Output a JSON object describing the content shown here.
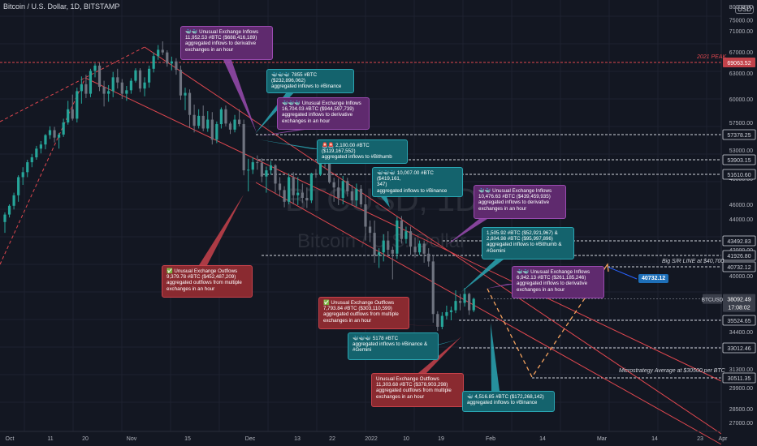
{
  "header": {
    "title": "Bitcoin / U.S. Dollar, 1D, BITSTAMP",
    "currency": "USD"
  },
  "watermark": {
    "ticker": "BTCUSD, 1D",
    "name": "Bitcoin / U.S. Dollar"
  },
  "colors": {
    "bg": "#131722",
    "up": "#26a69a",
    "down": "#6f7480",
    "channel": "#e0474f",
    "projection": "#f5a25d",
    "axisText": "#b2b5be"
  },
  "chart_data": {
    "type": "candlestick",
    "yaxis_ticks": [
      27000,
      28500,
      29900,
      31300,
      32600,
      34400,
      36000,
      38000,
      40000,
      42000,
      44000,
      46000,
      48000,
      51000,
      53000,
      55000,
      57500,
      60000,
      63000,
      67000,
      71000,
      75000,
      80000
    ],
    "yaxis_unit": "USD",
    "xaxis_ticks": [
      "Oct",
      "11",
      "20",
      "Nov",
      "15",
      "Dec",
      "13",
      "22",
      "2022",
      "10",
      "19",
      "Feb",
      "14",
      "Mar",
      "14",
      "23",
      "Apr"
    ],
    "price_labels": [
      {
        "value": "69063.52",
        "style": "peak"
      },
      {
        "value": "57378.25",
        "style": "level"
      },
      {
        "value": "53903.15",
        "style": "level"
      },
      {
        "value": "51610.60",
        "style": "level"
      },
      {
        "value": "43492.83",
        "style": "level"
      },
      {
        "value": "41926.80",
        "style": "level"
      },
      {
        "value": "40732.12",
        "style": "level"
      },
      {
        "value": "35524.65",
        "style": "level"
      },
      {
        "value": "33012.46",
        "style": "level"
      },
      {
        "value": "30511.35",
        "style": "level"
      }
    ],
    "current": {
      "symbol": "BTCUSD",
      "price": "38092.49",
      "countdown": "17:08:02"
    },
    "candles": [
      [
        43800,
        44900,
        43100,
        44600
      ],
      [
        44600,
        46000,
        44200,
        45800
      ],
      [
        45800,
        46900,
        45300,
        46700
      ],
      [
        46700,
        48500,
        46200,
        48200
      ],
      [
        48200,
        49800,
        47500,
        49000
      ],
      [
        49000,
        51000,
        48200,
        50600
      ],
      [
        50600,
        52200,
        49800,
        51500
      ],
      [
        51500,
        53600,
        51000,
        53200
      ],
      [
        53200,
        54300,
        52300,
        53800
      ],
      [
        53800,
        55400,
        53100,
        55200
      ],
      [
        55200,
        56800,
        54600,
        56100
      ],
      [
        56100,
        56700,
        54100,
        54800
      ],
      [
        54800,
        55600,
        53200,
        55300
      ],
      [
        55300,
        57900,
        54900,
        57500
      ],
      [
        57500,
        59800,
        57100,
        58900
      ],
      [
        58900,
        60500,
        57700,
        57900
      ],
      [
        57900,
        61300,
        57500,
        60900
      ],
      [
        60900,
        62600,
        59500,
        61700
      ],
      [
        61700,
        62800,
        60100,
        60600
      ],
      [
        60600,
        63800,
        60200,
        63400
      ],
      [
        63400,
        64800,
        62500,
        64400
      ],
      [
        64400,
        64900,
        60900,
        61400
      ],
      [
        61400,
        62100,
        59200,
        60600
      ],
      [
        60600,
        61600,
        59700,
        60900
      ],
      [
        60900,
        63200,
        60200,
        62500
      ],
      [
        62500,
        63800,
        61200,
        61900
      ],
      [
        61900,
        62300,
        60000,
        60600
      ],
      [
        60600,
        61500,
        59800,
        61000
      ],
      [
        61000,
        62400,
        60600,
        62100
      ],
      [
        62100,
        63900,
        61900,
        63500
      ],
      [
        63500,
        63900,
        60800,
        61200
      ],
      [
        61200,
        62500,
        60300,
        61900
      ],
      [
        61900,
        64400,
        61300,
        63800
      ],
      [
        63800,
        66900,
        63100,
        66200
      ],
      [
        66200,
        68300,
        65500,
        67400
      ],
      [
        67400,
        69000,
        66400,
        66900
      ],
      [
        66900,
        67300,
        64200,
        64800
      ],
      [
        64800,
        66100,
        63500,
        65200
      ],
      [
        65200,
        65800,
        62800,
        63600
      ],
      [
        63600,
        64400,
        59900,
        60400
      ],
      [
        60400,
        61300,
        58800,
        60700
      ],
      [
        60700,
        61100,
        56600,
        58300
      ],
      [
        58300,
        59400,
        55700,
        56900
      ],
      [
        56900,
        58900,
        56400,
        58200
      ],
      [
        58200,
        59300,
        55900,
        56400
      ],
      [
        56400,
        58700,
        55800,
        57800
      ],
      [
        57800,
        58600,
        53800,
        54500
      ],
      [
        54500,
        57600,
        54000,
        57200
      ],
      [
        57200,
        59100,
        56400,
        58900
      ],
      [
        58900,
        59300,
        56800,
        57300
      ],
      [
        57300,
        57600,
        55400,
        56200
      ],
      [
        56200,
        58300,
        55700,
        57800
      ],
      [
        57800,
        58900,
        56800,
        57200
      ],
      [
        57200,
        57800,
        48500,
        49300
      ],
      [
        49300,
        51200,
        47000,
        49400
      ],
      [
        49400,
        51500,
        48700,
        50600
      ],
      [
        50600,
        51900,
        49400,
        50500
      ],
      [
        50500,
        51300,
        47700,
        48300
      ],
      [
        48300,
        49900,
        46900,
        49300
      ],
      [
        49300,
        50800,
        48600,
        50100
      ],
      [
        50100,
        50300,
        46900,
        47600
      ],
      [
        47600,
        48200,
        46600,
        47100
      ],
      [
        47100,
        47400,
        45600,
        46200
      ],
      [
        46200,
        48800,
        46000,
        48200
      ],
      [
        48200,
        49000,
        46000,
        46700
      ],
      [
        46700,
        48200,
        45900,
        46900
      ],
      [
        46900,
        47600,
        46100,
        46500
      ],
      [
        46500,
        47300,
        45500,
        46300
      ],
      [
        46300,
        48900,
        46100,
        48800
      ],
      [
        48800,
        49500,
        48100,
        48600
      ],
      [
        48600,
        51800,
        48400,
        50800
      ],
      [
        50800,
        51300,
        49600,
        50400
      ],
      [
        50400,
        51000,
        47600,
        47700
      ],
      [
        47700,
        48100,
        46200,
        47300
      ],
      [
        47300,
        48000,
        45900,
        46500
      ],
      [
        46500,
        48400,
        46000,
        47800
      ],
      [
        47800,
        48100,
        46600,
        47000
      ],
      [
        47000,
        47500,
        45800,
        46300
      ],
      [
        46300,
        47600,
        45700,
        47200
      ],
      [
        47200,
        47500,
        45600,
        46000
      ],
      [
        46000,
        46700,
        42600,
        43500
      ],
      [
        43500,
        43900,
        42500,
        43100
      ],
      [
        43100,
        43900,
        41000,
        41600
      ],
      [
        41600,
        42100,
        40600,
        41800
      ],
      [
        41800,
        43000,
        41100,
        42600
      ],
      [
        42600,
        43200,
        41600,
        42000
      ],
      [
        42000,
        42200,
        39700,
        41700
      ],
      [
        41700,
        44300,
        41300,
        43900
      ],
      [
        43900,
        44400,
        42400,
        42700
      ],
      [
        42700,
        43500,
        42400,
        43200
      ],
      [
        43200,
        43500,
        41600,
        42200
      ],
      [
        42200,
        42800,
        41400,
        41800
      ],
      [
        41800,
        42600,
        41600,
        42400
      ],
      [
        42400,
        42600,
        41000,
        41700
      ],
      [
        41700,
        42100,
        40700,
        41100
      ],
      [
        41100,
        41600,
        35500,
        36500
      ],
      [
        36500,
        36800,
        34500,
        35000
      ],
      [
        35000,
        36700,
        34700,
        36300
      ],
      [
        36300,
        37400,
        35900,
        36700
      ],
      [
        36700,
        37300,
        35800,
        36900
      ],
      [
        36900,
        38800,
        36600,
        37900
      ],
      [
        37900,
        38500,
        36900,
        37700
      ],
      [
        37700,
        39000,
        37300,
        38500
      ],
      [
        38500,
        38600,
        36400,
        36900
      ],
      [
        36900,
        38200,
        36700,
        38100
      ]
    ],
    "channel": {
      "description": "descending channel from Nov 2021 peak"
    },
    "projection": {
      "description": "dashed path down to Microstrategy average then up to S/R line"
    }
  },
  "annotations": [
    {
      "color": "purple",
      "lines": [
        "🐳🐳 Unusual Exchange Inflows",
        "11,952.53 #BTC ($688,416,189)",
        "aggregated inflows to derivative",
        "exchanges in an hour"
      ]
    },
    {
      "color": "teal",
      "lines": [
        "🐳🐳🐳 7855 #BTC ($232,896,062)",
        "aggregated inflows to #Binance"
      ]
    },
    {
      "color": "purple",
      "lines": [
        "🐳🐳🐳 Unusual Exchange Inflows",
        "16,704.03 #BTC ($944,597,739)",
        "aggregated inflows to derivative",
        "exchanges in an hour"
      ]
    },
    {
      "color": "teal",
      "lines": [
        "🚨🚨 2,100.00 #BTC ($119,167,552)",
        "aggregated inflows to #Bithumb"
      ]
    },
    {
      "color": "teal",
      "lines": [
        "🐳🐳🐳 10,007.00 #BTC ($419,161,",
        "347)",
        "aggregated inflows to #Binance"
      ]
    },
    {
      "color": "purple",
      "lines": [
        "🐳🐳 Unusual Exchange Inflows",
        "10,476.63 #BTC ($439,459,935)",
        "aggregated inflows to derivative",
        "exchanges in an hour"
      ]
    },
    {
      "color": "teal",
      "lines": [
        "1,505.92 #BTC ($52,921,967) &",
        "2,804.98 #BTC ($95,997,896)",
        "aggregated inflows to #Bithumb &",
        "#Gemini"
      ]
    },
    {
      "color": "purple",
      "lines": [
        "🐳🐳 Unusual Exchange Inflows",
        "6,942.13 #BTC ($261,185,246)",
        "aggregated inflows to derivative",
        "exchanges in an hour"
      ]
    },
    {
      "color": "red",
      "lines": [
        "✅ Unusual Exchange Outflows",
        "9,379.78 #BTC ($452,487,209)",
        "aggregated outflows from multiple",
        "exchanges in an hour"
      ]
    },
    {
      "color": "red",
      "lines": [
        "✅ Unusual Exchange Outflows",
        "7,793.84 #BTC ($303,110,599)",
        "aggregated outflows from multiple",
        "exchanges in an hour"
      ]
    },
    {
      "color": "teal",
      "lines": [
        "🐳🐳🐳 5178 #BTC",
        "aggregated inflows to #Binance &",
        "#Gemini"
      ]
    },
    {
      "color": "red",
      "lines": [
        "Unusual Exchange Outflows",
        "11,303.68 #BTC ($378,903,298)",
        "aggregated outflows from multiple",
        "exchanges in an hour"
      ]
    },
    {
      "color": "teal",
      "lines": [
        "🐳 4,516.85 #BTC ($172,268,142)",
        "aggregated inflows to #Binance"
      ]
    }
  ],
  "labels": {
    "peak": "2021 PEAK",
    "support": "Big S/R LINE at $40,700",
    "support_badge": "40732.12",
    "microstrategy": "Microstrategy Average at $30500 per BTC"
  }
}
